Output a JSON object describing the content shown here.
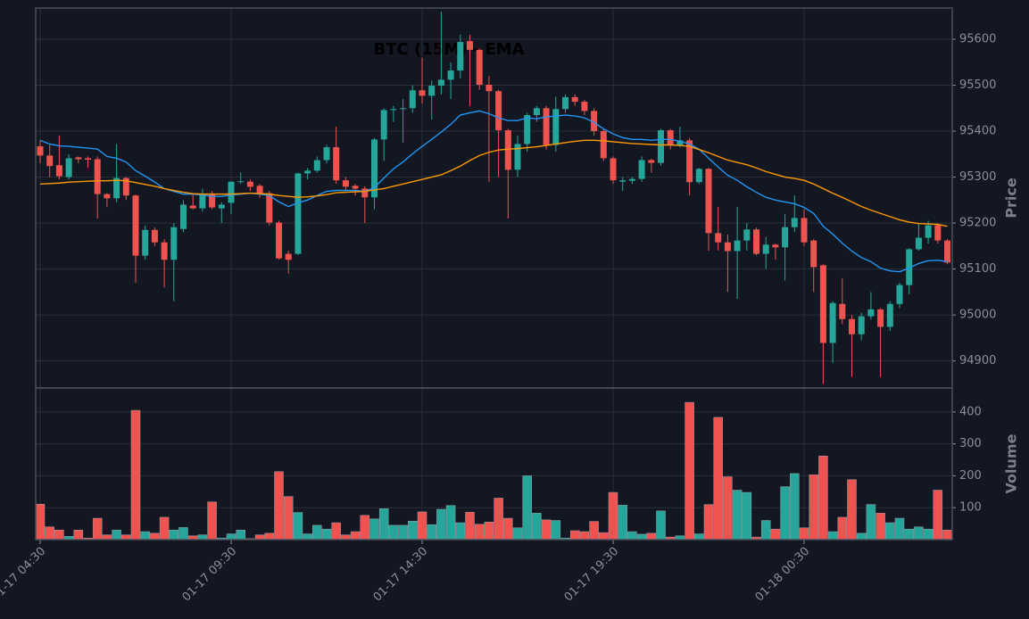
{
  "chart_data": [
    {
      "type": "candlestick",
      "title": "BTC (15M) - EMA",
      "ylabel": "Price",
      "up_color": "#26a69a",
      "down_color": "#ef5350",
      "grid": true,
      "ylim": [
        94841,
        95668
      ],
      "yticks": [
        94900,
        95000,
        95100,
        95200,
        95300,
        95400,
        95500,
        95600
      ],
      "open": [
        95367,
        95347,
        95326,
        95300,
        95343,
        95341,
        95339,
        95263,
        95254,
        95298,
        95260,
        95129,
        95185,
        95158,
        95120,
        95187,
        95238,
        95232,
        95263,
        95232,
        95244,
        95290,
        95290,
        95281,
        95265,
        95201,
        95133,
        95133,
        95308,
        95314,
        95337,
        95365,
        95293,
        95281,
        95275,
        95256,
        95382,
        95446,
        95448,
        95450,
        95489,
        95477,
        95499,
        95512,
        95532,
        95596,
        95577,
        95501,
        95487,
        95402,
        95316,
        95372,
        95435,
        95450,
        95370,
        95448,
        95474,
        95464,
        95444,
        95400,
        95341,
        95290,
        95292,
        95296,
        95337,
        95331,
        95402,
        95370,
        95380,
        95289,
        95318,
        95178,
        95158,
        95139,
        95162,
        95186,
        95133,
        95153,
        95147,
        95191,
        95211,
        95162,
        95108,
        94939,
        95024,
        94991,
        94958,
        94997,
        95012,
        94974,
        95024,
        95065,
        95143,
        95168,
        95195,
        95162
      ],
      "high": [
        95380,
        95370,
        95390,
        95350,
        95345,
        95345,
        95345,
        95265,
        95372,
        95300,
        95262,
        95195,
        95190,
        95165,
        95200,
        95250,
        95265,
        95275,
        95270,
        95245,
        95290,
        95310,
        95295,
        95285,
        95270,
        95205,
        95140,
        95310,
        95320,
        95345,
        95370,
        95410,
        95300,
        95285,
        95280,
        95385,
        95450,
        95455,
        95470,
        95500,
        95560,
        95510,
        95660,
        95550,
        95610,
        95610,
        95580,
        95520,
        95490,
        95405,
        95390,
        95440,
        95455,
        95455,
        95475,
        95480,
        95480,
        95468,
        95450,
        95405,
        95345,
        95300,
        95300,
        95345,
        95340,
        95405,
        95405,
        95410,
        95385,
        95320,
        95320,
        95235,
        95175,
        95235,
        95200,
        95190,
        95170,
        95155,
        95220,
        95260,
        95230,
        95165,
        95110,
        95030,
        95080,
        95000,
        95005,
        95050,
        95015,
        95030,
        95070,
        95145,
        95200,
        95205,
        95200,
        95165
      ],
      "low": [
        95330,
        95300,
        95295,
        95295,
        95330,
        95320,
        95210,
        95235,
        95245,
        95250,
        95070,
        95120,
        95150,
        95060,
        95030,
        95180,
        95230,
        95225,
        95230,
        95200,
        95220,
        95285,
        95270,
        95255,
        95195,
        95120,
        95090,
        95130,
        95295,
        95310,
        95330,
        95285,
        95270,
        95260,
        95200,
        95230,
        95335,
        95420,
        95375,
        95440,
        95460,
        95425,
        95480,
        95470,
        95515,
        95455,
        95490,
        95290,
        95300,
        95210,
        95300,
        95355,
        95420,
        95360,
        95355,
        95440,
        95455,
        95435,
        95390,
        95335,
        95285,
        95270,
        95285,
        95290,
        95310,
        95325,
        95360,
        95365,
        95260,
        95285,
        95140,
        95140,
        95050,
        95035,
        95140,
        95130,
        95100,
        95120,
        95075,
        95180,
        95150,
        95050,
        94850,
        94895,
        94980,
        94865,
        94945,
        94990,
        94865,
        94965,
        95015,
        95045,
        95140,
        95155,
        95155,
        95110
      ],
      "close": [
        95347,
        95324,
        95302,
        95341,
        95339,
        95338,
        95263,
        95254,
        95298,
        95260,
        95129,
        95185,
        95158,
        95120,
        95191,
        95240,
        95232,
        95260,
        95234,
        95240,
        95290,
        95291,
        95279,
        95265,
        95201,
        95123,
        95120,
        95308,
        95314,
        95337,
        95365,
        95293,
        95279,
        95275,
        95256,
        95382,
        95446,
        95448,
        95450,
        95489,
        95477,
        95499,
        95512,
        95532,
        95594,
        95577,
        95501,
        95487,
        95402,
        95316,
        95372,
        95435,
        95450,
        95370,
        95448,
        95474,
        95464,
        95444,
        95400,
        95341,
        95293,
        95293,
        95296,
        95337,
        95331,
        95402,
        95370,
        95380,
        95289,
        95318,
        95178,
        95158,
        95139,
        95162,
        95186,
        95133,
        95153,
        95147,
        95191,
        95211,
        95158,
        95104,
        94939,
        95026,
        94991,
        94958,
        94997,
        95012,
        94974,
        95024,
        95065,
        95143,
        95168,
        95195,
        95162,
        95114
      ],
      "lines": [
        {
          "color": "#2196f3",
          "values": [
            95380,
            95372,
            95368,
            95367,
            95365,
            95363,
            95361,
            95345,
            95341,
            95333,
            95314,
            95302,
            95289,
            95275,
            95269,
            95263,
            95263,
            95261,
            95258,
            95258,
            95261,
            95263,
            95265,
            95263,
            95260,
            95246,
            95236,
            95244,
            95250,
            95260,
            95269,
            95271,
            95271,
            95271,
            95269,
            95277,
            95298,
            95318,
            95333,
            95351,
            95367,
            95382,
            95398,
            95415,
            95435,
            95440,
            95444,
            95438,
            95429,
            95423,
            95423,
            95429,
            95427,
            95431,
            95433,
            95435,
            95433,
            95429,
            95419,
            95405,
            95394,
            95386,
            95382,
            95382,
            95380,
            95382,
            95382,
            95378,
            95372,
            95361,
            95341,
            95322,
            95304,
            95293,
            95279,
            95267,
            95256,
            95250,
            95246,
            95242,
            95234,
            95221,
            95193,
            95176,
            95156,
            95139,
            95125,
            95116,
            95102,
            95096,
            95094,
            95102,
            95112,
            95118,
            95119,
            95116
          ]
        },
        {
          "color": "#ff9800",
          "values": [
            95285,
            95286,
            95287,
            95289,
            95290,
            95291,
            95292,
            95292,
            95293,
            95292,
            95288,
            95284,
            95280,
            95275,
            95271,
            95267,
            95264,
            95263,
            95263,
            95263,
            95263,
            95264,
            95265,
            95264,
            95263,
            95260,
            95258,
            95256,
            95257,
            95259,
            95262,
            95266,
            95267,
            95268,
            95269,
            95272,
            95275,
            95280,
            95285,
            95290,
            95295,
            95300,
            95305,
            95314,
            95324,
            95336,
            95347,
            95354,
            95359,
            95361,
            95362,
            95364,
            95366,
            95369,
            95372,
            95375,
            95378,
            95380,
            95380,
            95379,
            95377,
            95375,
            95373,
            95372,
            95371,
            95370,
            95370,
            95369,
            95367,
            95360,
            95353,
            95345,
            95337,
            95332,
            95327,
            95320,
            95312,
            95306,
            95300,
            95297,
            95293,
            95285,
            95275,
            95265,
            95256,
            95246,
            95236,
            95228,
            95221,
            95214,
            95207,
            95202,
            95199,
            95198,
            95197,
            95193
          ]
        }
      ]
    },
    {
      "type": "bar",
      "ylabel": "Volume",
      "grid": true,
      "ylim": [
        0,
        475
      ],
      "yticks": [
        100,
        200,
        300,
        400
      ],
      "x": [
        "01-17 04:30",
        null,
        null,
        null,
        null,
        null,
        null,
        null,
        null,
        null,
        null,
        null,
        null,
        null,
        null,
        null,
        null,
        null,
        null,
        null,
        "01-17 09:30",
        null,
        null,
        null,
        null,
        null,
        null,
        null,
        null,
        null,
        null,
        null,
        null,
        null,
        null,
        null,
        null,
        null,
        null,
        null,
        "01-17 14:30",
        null,
        null,
        null,
        null,
        null,
        null,
        null,
        null,
        null,
        null,
        null,
        null,
        null,
        null,
        null,
        null,
        null,
        null,
        null,
        "01-17 19:30",
        null,
        null,
        null,
        null,
        null,
        null,
        null,
        null,
        null,
        null,
        null,
        null,
        null,
        null,
        null,
        null,
        null,
        null,
        null,
        "01-18 00:30",
        null,
        null,
        null,
        null,
        null,
        null,
        null,
        null,
        null,
        null,
        null,
        null,
        null,
        null,
        null
      ],
      "values": [
        111,
        40,
        30,
        10,
        30,
        5,
        67,
        15,
        30,
        15,
        405,
        25,
        20,
        70,
        30,
        38,
        12,
        15,
        118,
        5,
        18,
        30,
        3,
        15,
        20,
        213,
        135,
        85,
        18,
        45,
        33,
        53,
        15,
        25,
        76,
        65,
        97,
        45,
        45,
        58,
        87,
        47,
        95,
        107,
        53,
        86,
        48,
        55,
        130,
        67,
        37,
        200,
        83,
        62,
        60,
        5,
        28,
        25,
        57,
        22,
        148,
        108,
        25,
        17,
        20,
        90,
        8,
        12,
        430,
        18,
        110,
        383,
        197,
        155,
        148,
        8,
        60,
        33,
        166,
        207,
        37,
        203,
        262,
        25,
        70,
        188,
        20,
        110,
        83,
        53,
        67,
        33,
        40,
        33,
        155,
        30
      ]
    }
  ]
}
